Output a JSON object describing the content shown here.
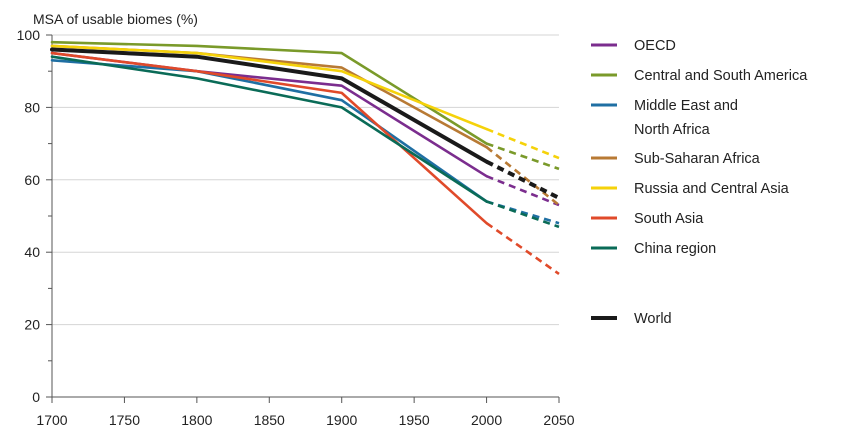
{
  "chart_data": {
    "type": "line",
    "ylabel": "MSA of usable biomes (%)",
    "xlabel": "",
    "title": "",
    "xlim": [
      1700,
      2050
    ],
    "ylim": [
      0,
      100
    ],
    "x_ticks": [
      "1700",
      "1750",
      "1800",
      "1850",
      "1900",
      "1950",
      "2000",
      "2050"
    ],
    "y_ticks": [
      "0",
      "20",
      "40",
      "60",
      "80",
      "100"
    ],
    "solid_until": 2000,
    "projection_dashed_after": 2000,
    "legend_position": "right",
    "series": [
      {
        "name": "OECD",
        "color": "#7b2d8e",
        "x": [
          1700,
          1800,
          1900,
          2000,
          2050
        ],
        "y": [
          95,
          90,
          86,
          61,
          53
        ]
      },
      {
        "name": "Central and South America",
        "color": "#7a9a2a",
        "x": [
          1700,
          1800,
          1900,
          2000,
          2050
        ],
        "y": [
          98,
          97,
          95,
          70,
          63
        ]
      },
      {
        "name": [
          "Middle East and",
          "North Africa"
        ],
        "color": "#1f6fa3",
        "x": [
          1700,
          1800,
          1900,
          2000,
          2050
        ],
        "y": [
          93,
          90,
          82,
          54,
          48
        ]
      },
      {
        "name": "Sub-Saharan Africa",
        "color": "#b87a34",
        "x": [
          1700,
          1800,
          1900,
          2000,
          2050
        ],
        "y": [
          97,
          95,
          91,
          69,
          53
        ]
      },
      {
        "name": "Russia and Central Asia",
        "color": "#f5d20a",
        "x": [
          1700,
          1800,
          1900,
          2000,
          2050
        ],
        "y": [
          97,
          95,
          90,
          74,
          66
        ]
      },
      {
        "name": "South Asia",
        "color": "#e04a2a",
        "x": [
          1700,
          1800,
          1900,
          2000,
          2050
        ],
        "y": [
          95,
          90,
          84,
          48,
          34
        ]
      },
      {
        "name": "China region",
        "color": "#0a6b57",
        "x": [
          1700,
          1800,
          1900,
          2000,
          2050
        ],
        "y": [
          94,
          88,
          80,
          54,
          47
        ]
      },
      {
        "name": "World",
        "color": "#1a1a1a",
        "x": [
          1700,
          1800,
          1900,
          2000,
          2050
        ],
        "y": [
          96,
          94,
          88,
          65,
          55
        ],
        "bold": true
      }
    ]
  }
}
